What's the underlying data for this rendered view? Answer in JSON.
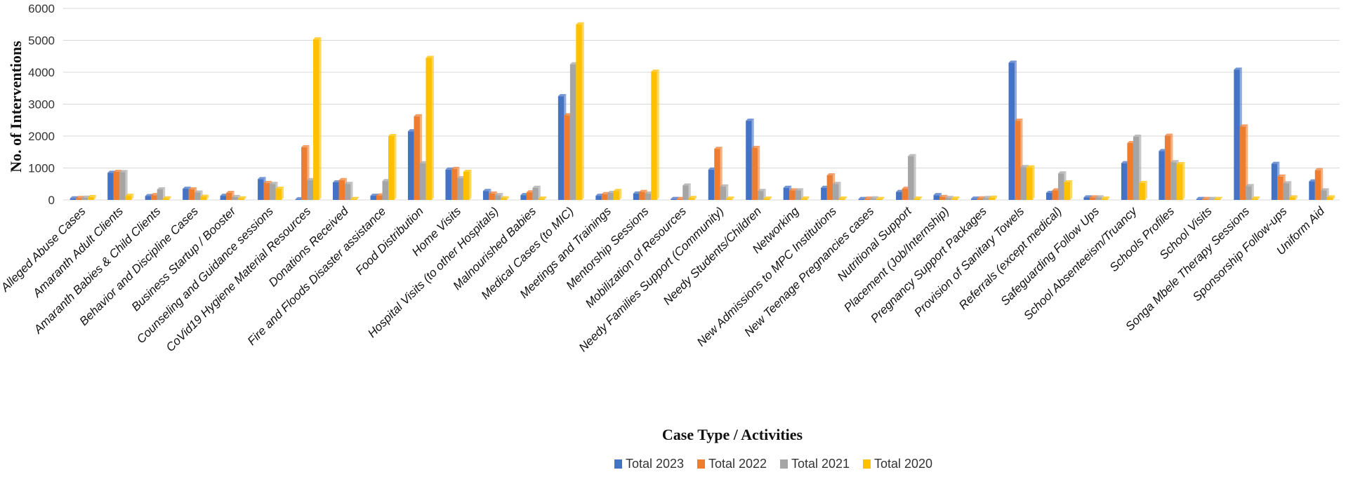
{
  "chart_data": {
    "type": "bar",
    "title": "",
    "xlabel": "Case Type / Activities",
    "ylabel": "No. of Interventions",
    "ylim": [
      0,
      6000
    ],
    "yticks": [
      "0",
      "1000",
      "2000",
      "3000",
      "4000",
      "5000",
      "6000"
    ],
    "grid": true,
    "legend_position": "bottom",
    "categories": [
      "Alleged Abuse Cases",
      "Amaranth Adult Clients",
      "Amaranth Babies & Child Clients",
      "Behavior and Discipline  Cases",
      "Business Startup / Booster",
      "Counseling and Guidance sessions",
      "CoVid19 Hygiene Material Resources",
      "Donations Received",
      "Fire and Floods Disaster assistance",
      "Food Distribution",
      "Home Visits",
      "Hospital Visits (to other Hospitals)",
      "Malnourished Babies",
      "Medical Cases (to MIC)",
      "Meetings and Trainings",
      "Mentorship Sessions",
      "Mobilization of Resources",
      "Needy Families  Support (Community)",
      "Needy Students/Children",
      "Networking",
      "New Admissions to MPC Institutions",
      "New Teenage Pregnancies cases",
      "Nutritional Support",
      "Placement (Job/Internship)",
      "Pregnancy Support Packages",
      "Provision of Sanitary Towels",
      "Referrals (except medical)",
      "Safeguarding Follow Ups",
      "School Absenteeism/Truancy",
      "Schools Profiles",
      "School  Visits",
      "Songa Mbele Therapy Sessions",
      "Sponsorship Follow-ups",
      "Uniform Aid"
    ],
    "series": [
      {
        "name": "Total 2023",
        "color": "#4472C4",
        "values": [
          50,
          850,
          120,
          350,
          130,
          650,
          20,
          550,
          130,
          2150,
          950,
          280,
          150,
          3250,
          130,
          200,
          30,
          950,
          2480,
          380,
          380,
          30,
          250,
          150,
          40,
          4300,
          220,
          80,
          1150,
          1530,
          30,
          4080,
          1130,
          580
        ]
      },
      {
        "name": "Total 2022",
        "color": "#ED7D31",
        "values": [
          60,
          880,
          150,
          330,
          220,
          530,
          1650,
          620,
          140,
          2620,
          970,
          200,
          240,
          2650,
          180,
          250,
          30,
          1600,
          1630,
          300,
          770,
          40,
          350,
          90,
          50,
          2480,
          300,
          80,
          1780,
          2010,
          30,
          2300,
          730,
          930
        ]
      },
      {
        "name": "Total 2021",
        "color": "#A5A5A5",
        "values": [
          70,
          870,
          330,
          230,
          90,
          500,
          620,
          500,
          590,
          1150,
          680,
          150,
          380,
          4250,
          220,
          200,
          450,
          420,
          280,
          300,
          500,
          50,
          1370,
          60,
          60,
          1030,
          830,
          80,
          1980,
          1180,
          30,
          430,
          520,
          300
        ]
      },
      {
        "name": "Total 2020",
        "color": "#FFC000",
        "values": [
          90,
          130,
          50,
          100,
          50,
          350,
          5030,
          30,
          2000,
          4450,
          880,
          50,
          40,
          5500,
          280,
          4020,
          60,
          40,
          40,
          40,
          40,
          30,
          40,
          40,
          70,
          1020,
          550,
          40,
          530,
          1120,
          30,
          40,
          80,
          80
        ]
      }
    ]
  }
}
